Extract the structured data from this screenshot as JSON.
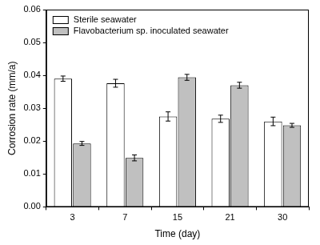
{
  "chart_data": {
    "type": "bar",
    "categories": [
      "3",
      "7",
      "15",
      "21",
      "30"
    ],
    "x_label": "Time (day)",
    "y_label": "Corrosion rate (mm/a)",
    "series": [
      {
        "name": "Sterile seawater",
        "color": "#ffffff",
        "values": [
          0.039,
          0.0376,
          0.0275,
          0.0268,
          0.026
        ],
        "errors": [
          0.0008,
          0.0012,
          0.0014,
          0.0011,
          0.0013
        ]
      },
      {
        "name": "Flavobacterium sp. inoculated seawater",
        "color": "#c0c0c0",
        "values": [
          0.0193,
          0.0149,
          0.0394,
          0.037,
          0.0248
        ],
        "errors": [
          0.0006,
          0.0009,
          0.0009,
          0.0009,
          0.0006
        ]
      }
    ],
    "ylim": [
      0,
      0.06
    ],
    "yticks": [
      {
        "value": 0,
        "label": "0.00"
      },
      {
        "value": 0.01,
        "label": "0.01"
      },
      {
        "value": 0.02,
        "label": "0.02"
      },
      {
        "value": 0.03,
        "label": "0.03"
      },
      {
        "value": 0.04,
        "label": "0.04"
      },
      {
        "value": 0.05,
        "label": "0.05"
      },
      {
        "value": 0.06,
        "label": "0.06"
      }
    ],
    "grid": false,
    "legend": "upper left"
  }
}
